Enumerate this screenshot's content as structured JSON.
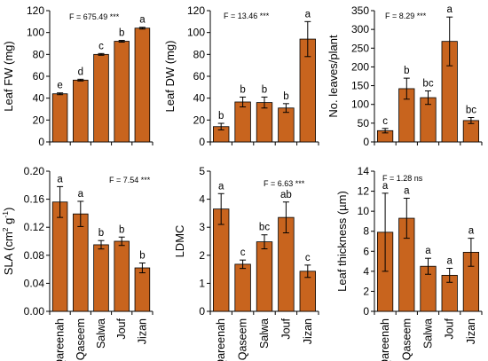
{
  "chart_data": [
    {
      "type": "bar",
      "categories": [
        "Qareenah",
        "Qaseem",
        "Salwa",
        "Jouf",
        "Jizan"
      ],
      "values": [
        44,
        56.5,
        80,
        92,
        104
      ],
      "errors": [
        0.8,
        0.8,
        0.8,
        0.8,
        0.8
      ],
      "letters": [
        "e",
        "d",
        "c",
        "b",
        "a"
      ],
      "ylabel": "Leaf FW (mg)",
      "ylim": [
        0,
        120
      ],
      "ticks": [
        0,
        20,
        40,
        60,
        80,
        100,
        120
      ],
      "tick_labels": [
        "0",
        "20",
        "40",
        "60",
        "80",
        "100",
        "120"
      ],
      "stat": "F = 675.49 ***",
      "show_categories": false
    },
    {
      "type": "bar",
      "categories": [
        "Qareenah",
        "Qaseem",
        "Salwa",
        "Jouf",
        "Jizan"
      ],
      "values": [
        14,
        36.5,
        36,
        31,
        94
      ],
      "errors": [
        3,
        4.5,
        5,
        4,
        16
      ],
      "letters": [
        "b",
        "b",
        "b",
        "b",
        "a"
      ],
      "ylabel": "Leaf DW (mg)",
      "ylim": [
        0,
        120
      ],
      "ticks": [
        0,
        20,
        40,
        60,
        80,
        100,
        120
      ],
      "tick_labels": [
        "0",
        "20",
        "40",
        "60",
        "80",
        "100",
        "120"
      ],
      "stat": "F = 13.46 ***",
      "show_categories": false
    },
    {
      "type": "bar",
      "categories": [
        "Qareenah",
        "Qaseem",
        "Salwa",
        "Jouf",
        "Jizan"
      ],
      "values": [
        30,
        142,
        118,
        268,
        57
      ],
      "errors": [
        6,
        28,
        18,
        65,
        8
      ],
      "letters": [
        "c",
        "b",
        "bc",
        "a",
        "bc"
      ],
      "ylabel": "No. leaves/plant",
      "ylim": [
        0,
        350
      ],
      "ticks": [
        0,
        50,
        100,
        150,
        200,
        250,
        300,
        350
      ],
      "tick_labels": [
        "0",
        "50",
        "100",
        "150",
        "200",
        "250",
        "300",
        "350"
      ],
      "stat": "F = 8.29 ***",
      "show_categories": false
    },
    {
      "type": "bar",
      "categories": [
        "Qareenah",
        "Qaseem",
        "Salwa",
        "Jouf",
        "Jizan"
      ],
      "values": [
        0.156,
        0.139,
        0.095,
        0.1,
        0.062
      ],
      "errors": [
        0.022,
        0.018,
        0.006,
        0.006,
        0.007
      ],
      "letters": [
        "a",
        "a",
        "b",
        "b",
        "b"
      ],
      "ylabel_parts": [
        "SLA (cm",
        "2",
        " g",
        "-1",
        ")"
      ],
      "ylim": [
        0,
        0.2
      ],
      "ticks": [
        0,
        0.04,
        0.08,
        0.12,
        0.16,
        0.2
      ],
      "tick_labels": [
        "0.00",
        "0.04",
        "0.08",
        "0.12",
        "0.16",
        "0.20"
      ],
      "stat": "F = 7.54 ***",
      "show_categories": true
    },
    {
      "type": "bar",
      "categories": [
        "Qareenah",
        "Qaseem",
        "Salwa",
        "Jouf",
        "Jizan"
      ],
      "values": [
        3.65,
        1.68,
        2.48,
        3.35,
        1.43
      ],
      "errors": [
        0.55,
        0.15,
        0.25,
        0.55,
        0.22
      ],
      "letters": [
        "a",
        "c",
        "bc",
        "ab",
        "c"
      ],
      "ylabel": "LDMC",
      "ylim": [
        0,
        5
      ],
      "ticks": [
        0,
        1,
        2,
        3,
        4,
        5
      ],
      "tick_labels": [
        "0",
        "1",
        "2",
        "3",
        "4",
        "5"
      ],
      "stat": "F = 6.63 ***",
      "show_categories": true
    },
    {
      "type": "bar",
      "categories": [
        "Qareenah",
        "Qaseem",
        "Salwa",
        "Jouf",
        "Jizan"
      ],
      "values": [
        7.9,
        9.3,
        4.5,
        3.6,
        5.9
      ],
      "errors": [
        3.9,
        2,
        0.8,
        0.7,
        1.4
      ],
      "letters": [
        "a",
        "a",
        "a",
        "a",
        "a"
      ],
      "ylabel": "Leaf thickness (µm)",
      "ylim": [
        0,
        14
      ],
      "ticks": [
        0,
        2,
        4,
        6,
        8,
        10,
        12,
        14
      ],
      "tick_labels": [
        "0",
        "2",
        "4",
        "6",
        "8",
        "10",
        "12",
        "14"
      ],
      "stat": "F = 1.28 ns",
      "show_categories": true
    }
  ]
}
